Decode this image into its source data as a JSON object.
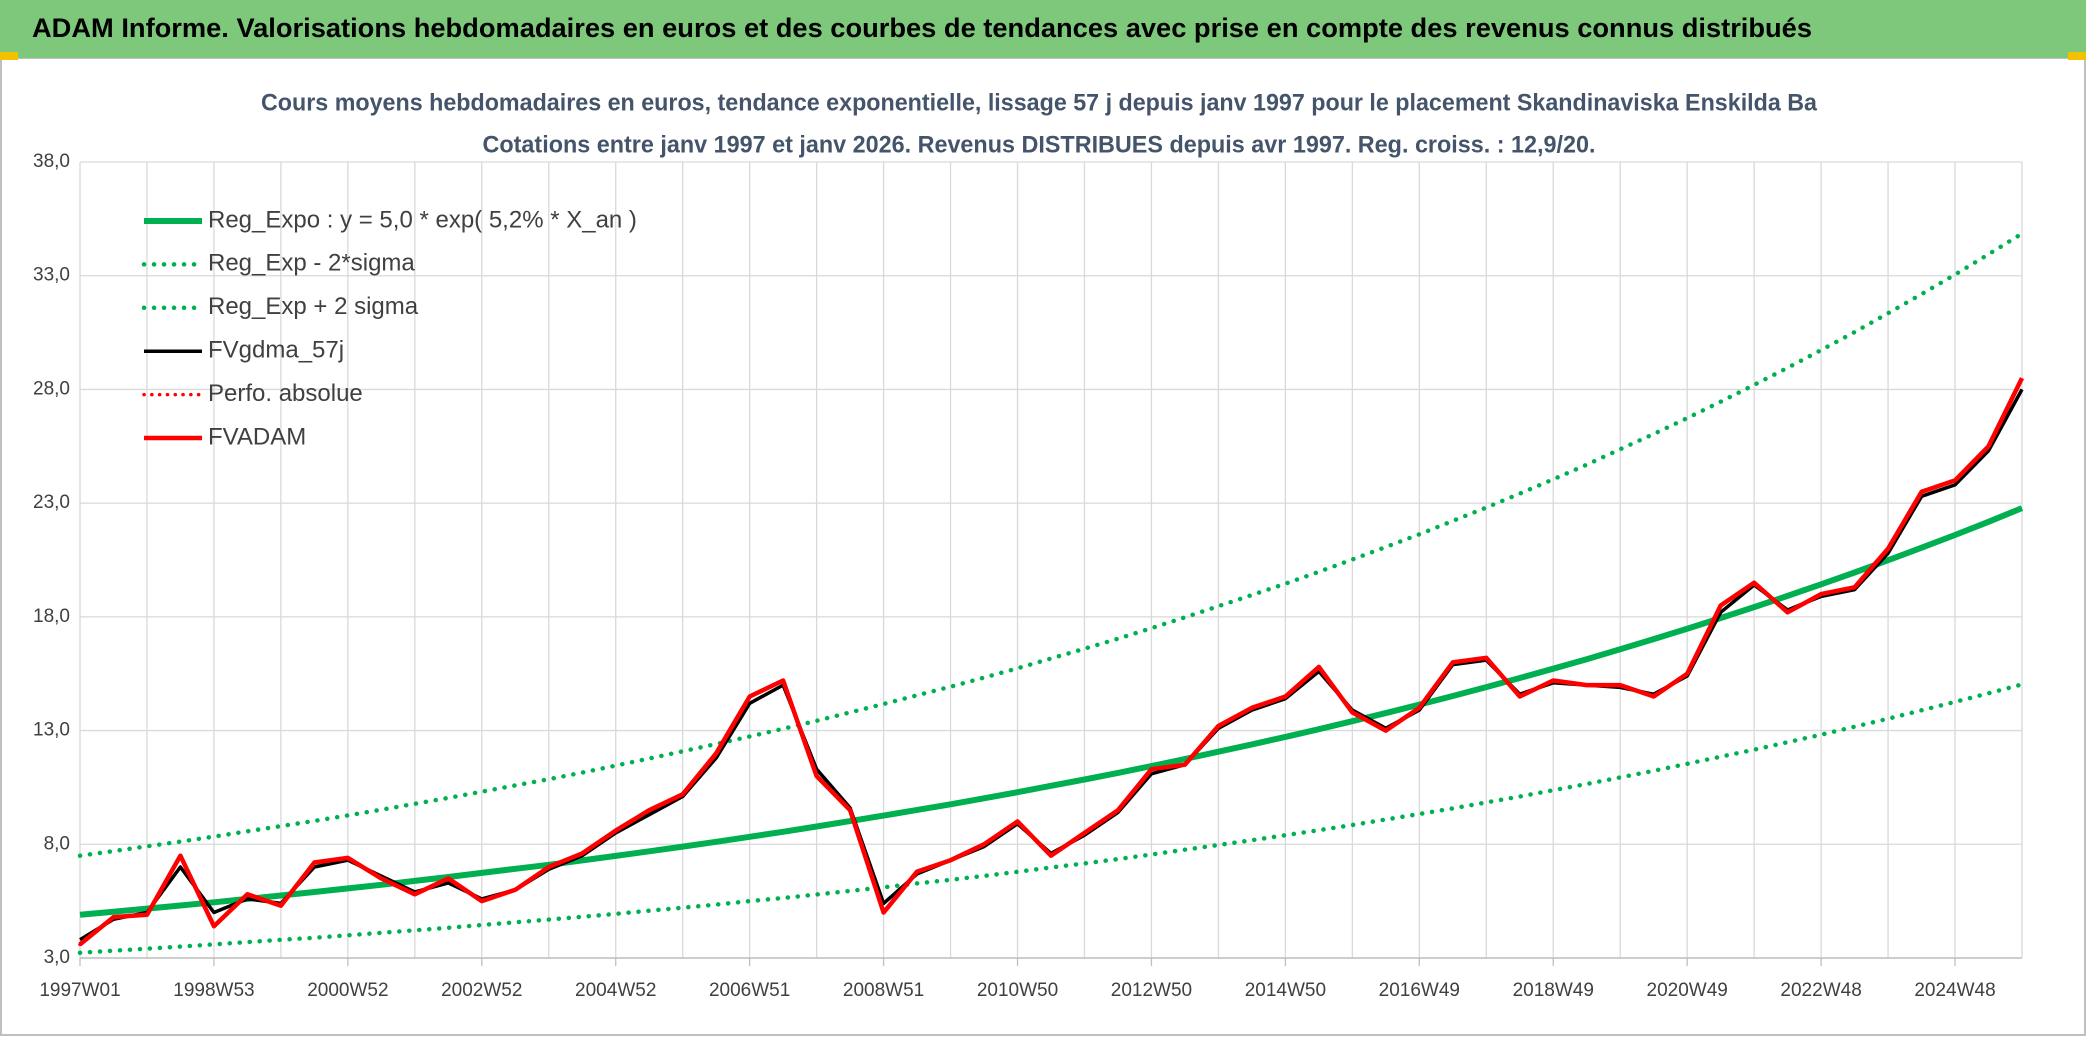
{
  "header": {
    "title": "ADAM Informe. Valorisations hebdomadaires en euros et des courbes de tendances avec prise en compte des revenus connus distribués"
  },
  "chart_data": {
    "type": "line",
    "title": "Cours moyens hebdomadaires en euros, tendance exponentielle, lissage 57 j depuis janv 1997 pour le placement Skandinaviska Enskilda Ba",
    "subtitle": "Cotations entre janv 1997 et janv 2026. Revenus DISTRIBUES depuis avr 1997. Reg. croiss. : 12,9/20.",
    "categories": [
      "1997W01",
      null,
      null,
      null,
      "1998W53",
      null,
      null,
      null,
      "2000W52",
      null,
      null,
      null,
      "2002W52",
      null,
      null,
      null,
      "2004W52",
      null,
      null,
      null,
      "2006W51",
      null,
      null,
      null,
      "2008W51",
      null,
      null,
      null,
      "2010W50",
      null,
      null,
      null,
      "2012W50",
      null,
      null,
      null,
      "2014W50",
      null,
      null,
      null,
      "2016W49",
      null,
      null,
      null,
      "2018W49",
      null,
      null,
      null,
      "2020W49",
      null,
      null,
      null,
      "2022W48",
      null,
      null,
      null,
      "2024W48",
      null,
      null
    ],
    "ylim": [
      3,
      38
    ],
    "yticks": [
      {
        "value": 3,
        "label": "3,0"
      },
      {
        "value": 8,
        "label": "8,0"
      },
      {
        "value": 13,
        "label": "13,0"
      },
      {
        "value": 18,
        "label": "18,0"
      },
      {
        "value": 23,
        "label": "23,0"
      },
      {
        "value": 28,
        "label": "28,0"
      },
      {
        "value": 33,
        "label": "33,0"
      },
      {
        "value": 38,
        "label": "38,0"
      }
    ],
    "grid": true,
    "legend": "upper left",
    "series": [
      {
        "name": "Reg_Expo : y = 5,0 * exp( 5,2% *  X_an )",
        "color": "#00b050",
        "style": "solid",
        "values": [
          4.9,
          5.03,
          5.17,
          5.31,
          5.45,
          5.6,
          5.75,
          5.9,
          6.06,
          6.22,
          6.39,
          6.56,
          6.74,
          6.92,
          7.1,
          7.29,
          7.49,
          7.69,
          7.9,
          8.11,
          8.33,
          8.55,
          8.78,
          9.02,
          9.26,
          9.51,
          9.76,
          10.02,
          10.29,
          10.57,
          10.85,
          11.14,
          11.44,
          11.75,
          12.07,
          12.39,
          12.72,
          13.06,
          13.41,
          13.77,
          14.14,
          14.52,
          14.91,
          15.31,
          15.72,
          16.14,
          16.58,
          17.02,
          17.48,
          17.95,
          18.43,
          18.92,
          19.43,
          19.95,
          20.49,
          21.04,
          21.6,
          22.18,
          22.78
        ]
      },
      {
        "name": "Reg_Exp - 2*sigma",
        "color": "#00b050",
        "style": "dotted",
        "values": [
          3.23,
          3.32,
          3.41,
          3.5,
          3.6,
          3.7,
          3.8,
          3.89,
          4.0,
          4.11,
          4.22,
          4.33,
          4.45,
          4.57,
          4.69,
          4.81,
          4.94,
          5.08,
          5.21,
          5.35,
          5.5,
          5.64,
          5.79,
          5.95,
          6.11,
          6.28,
          6.44,
          6.61,
          6.79,
          6.98,
          7.16,
          7.35,
          7.55,
          7.76,
          7.97,
          8.18,
          8.4,
          8.62,
          8.85,
          9.09,
          9.33,
          9.58,
          9.84,
          10.1,
          10.38,
          10.65,
          10.94,
          11.23,
          11.54,
          11.85,
          12.16,
          12.49,
          12.82,
          13.17,
          13.52,
          13.89,
          14.26,
          14.64,
          15.03
        ]
      },
      {
        "name": "Reg_Exp + 2 sigma",
        "color": "#00b050",
        "style": "dotted",
        "values": [
          7.5,
          7.7,
          7.91,
          8.12,
          8.34,
          8.57,
          8.8,
          9.03,
          9.27,
          9.52,
          9.78,
          10.04,
          10.31,
          10.59,
          10.86,
          11.15,
          11.46,
          11.77,
          12.09,
          12.41,
          12.74,
          13.08,
          13.43,
          13.8,
          14.17,
          14.55,
          14.93,
          15.33,
          15.74,
          16.17,
          16.6,
          17.04,
          17.5,
          17.98,
          18.47,
          18.96,
          19.46,
          19.98,
          20.52,
          21.07,
          21.63,
          22.22,
          22.81,
          23.42,
          24.05,
          24.69,
          25.37,
          26.04,
          26.74,
          27.46,
          28.2,
          28.95,
          29.73,
          30.52,
          31.35,
          32.19,
          33.05,
          33.94,
          34.85
        ]
      },
      {
        "name": "FVgdma_57j",
        "color": "#000000",
        "style": "solid",
        "values": [
          3.8,
          4.7,
          5.0,
          7.0,
          5.0,
          5.6,
          5.4,
          7.0,
          7.3,
          6.6,
          5.9,
          6.3,
          5.6,
          6.0,
          6.9,
          7.5,
          8.5,
          9.3,
          10.1,
          11.8,
          14.2,
          15.0,
          11.3,
          9.6,
          5.4,
          6.7,
          7.3,
          7.9,
          8.9,
          7.6,
          8.4,
          9.4,
          11.1,
          11.5,
          13.1,
          13.9,
          14.4,
          15.6,
          13.9,
          13.1,
          13.9,
          15.9,
          16.1,
          14.6,
          15.1,
          15.0,
          14.9,
          14.6,
          15.4,
          18.2,
          19.4,
          18.3,
          18.9,
          19.2,
          20.8,
          23.3,
          23.8,
          25.3,
          28.0
        ]
      },
      {
        "name": "Perfo. absolue",
        "color": "#ff0000",
        "style": "dotted",
        "values": [
          3.6,
          4.8,
          4.9,
          7.5,
          4.4,
          5.8,
          5.3,
          7.2,
          7.4,
          6.5,
          5.8,
          6.5,
          5.5,
          6.0,
          7.0,
          7.6,
          8.6,
          9.5,
          10.2,
          12.0,
          14.5,
          15.2,
          11.0,
          9.5,
          5.0,
          6.8,
          7.3,
          8.0,
          9.0,
          7.5,
          8.5,
          9.5,
          11.3,
          11.5,
          13.2,
          14.0,
          14.5,
          15.8,
          13.8,
          13.0,
          14.0,
          16.0,
          16.2,
          14.5,
          15.2,
          15.0,
          15.0,
          14.5,
          15.5,
          18.5,
          19.5,
          18.2,
          19.0,
          19.3,
          21.0,
          23.5,
          24.0,
          25.5,
          28.5
        ]
      },
      {
        "name": "FVADAM",
        "color": "#ff0000",
        "style": "solid",
        "values": [
          3.6,
          4.8,
          4.9,
          7.5,
          4.4,
          5.8,
          5.3,
          7.2,
          7.4,
          6.5,
          5.8,
          6.5,
          5.5,
          6.0,
          7.0,
          7.6,
          8.6,
          9.5,
          10.2,
          12.0,
          14.5,
          15.2,
          11.0,
          9.5,
          5.0,
          6.8,
          7.3,
          8.0,
          9.0,
          7.5,
          8.5,
          9.5,
          11.3,
          11.5,
          13.2,
          14.0,
          14.5,
          15.8,
          13.8,
          13.0,
          14.0,
          16.0,
          16.2,
          14.5,
          15.2,
          15.0,
          15.0,
          14.5,
          15.5,
          18.5,
          19.5,
          18.2,
          19.0,
          19.3,
          21.0,
          23.5,
          24.0,
          25.5,
          28.5
        ]
      }
    ]
  }
}
